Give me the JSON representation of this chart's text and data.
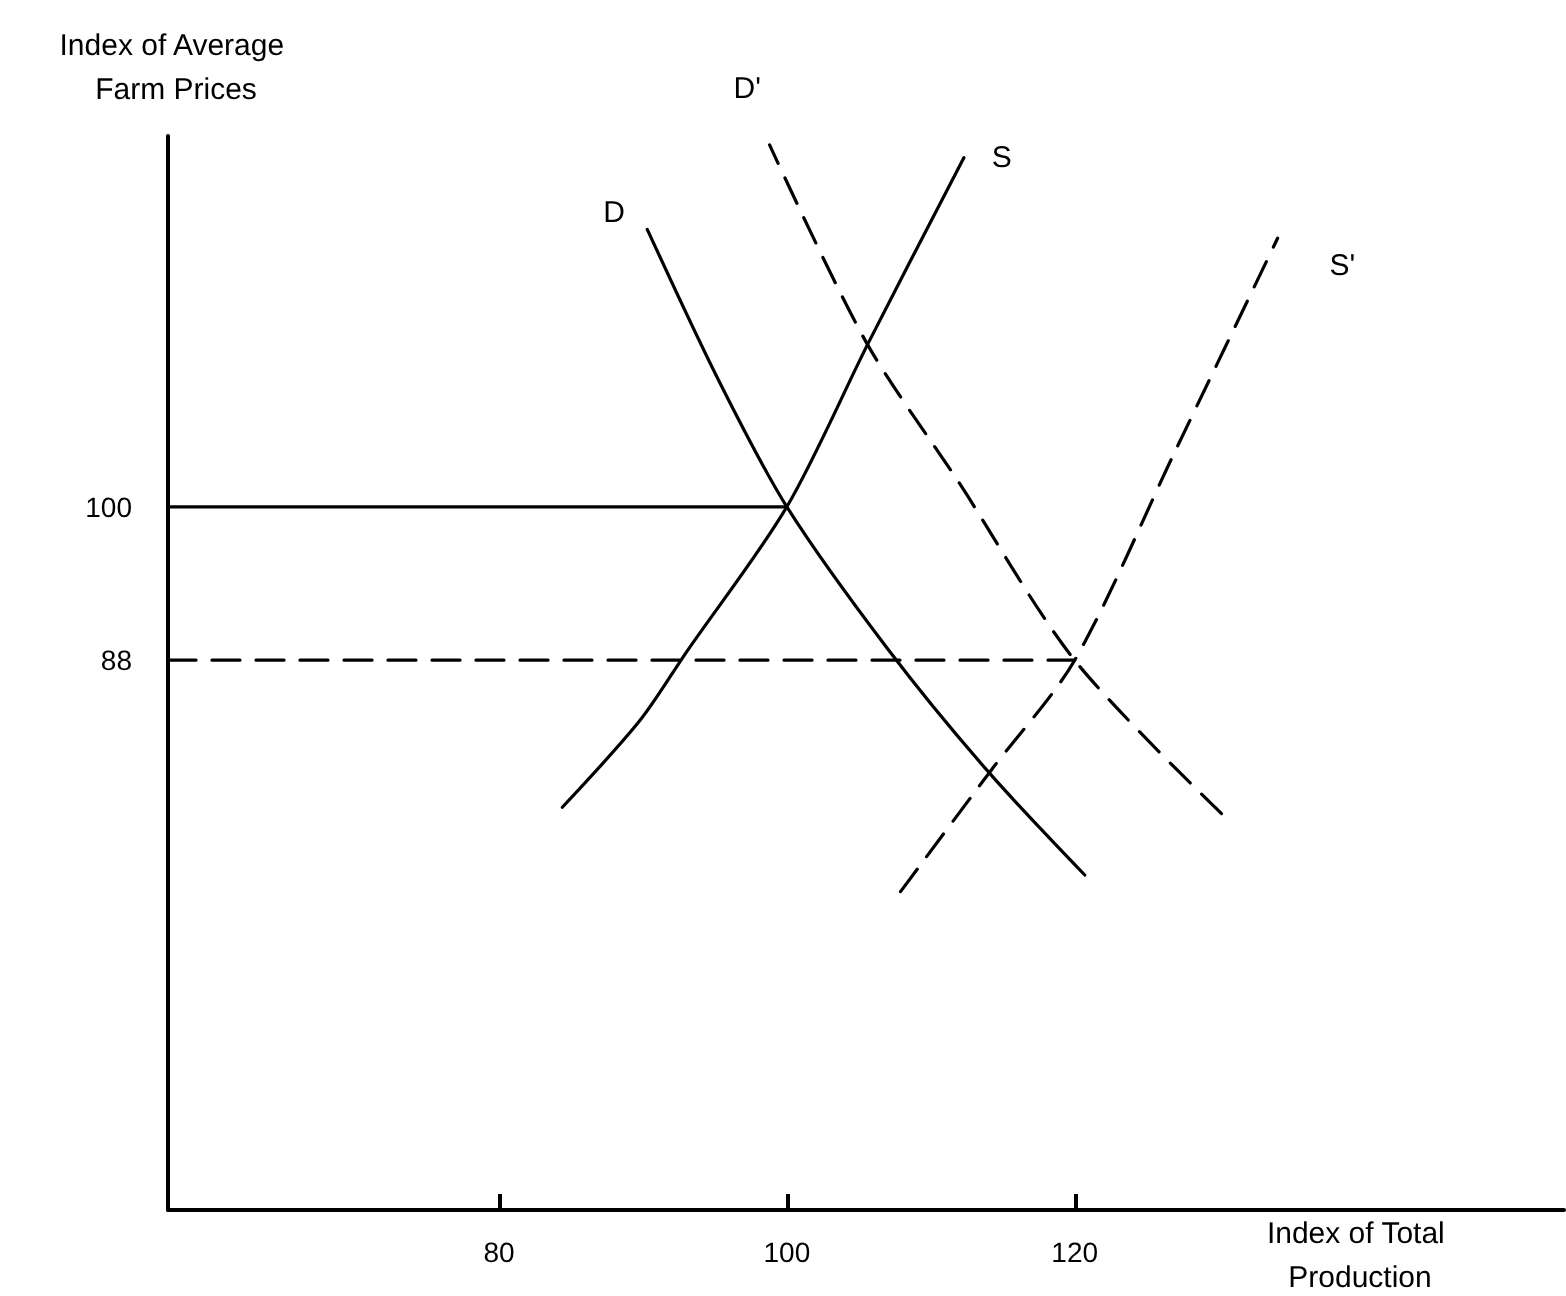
{
  "chart_data": {
    "type": "line",
    "xlabel": "Index of Total Production",
    "ylabel": "Index of Average Farm Prices",
    "xlim": [
      57,
      154
    ],
    "ylim": [
      45,
      129
    ],
    "xticks": [
      80,
      100,
      120
    ],
    "yticks": [
      88,
      100
    ],
    "grid": false,
    "legend": false,
    "marker": "none",
    "series": [
      {
        "name": "S",
        "color": "#000000",
        "line_style": "solid",
        "x": [
          84.4,
          89.8,
          93,
          100,
          105.7,
          112.3
        ],
        "values": [
          76.5,
          83.3,
          88.6,
          100,
          112.9,
          127.3
        ]
      },
      {
        "name": "D",
        "color": "#000000",
        "line_style": "solid",
        "x": [
          120.7,
          113.9,
          107,
          100,
          95.3,
          90.3
        ],
        "values": [
          71.2,
          79.4,
          88.9,
          100,
          109.8,
          121.7
        ]
      },
      {
        "name": "D'",
        "color": "#000000",
        "line_style": "dashed",
        "x": [
          130.2,
          120,
          111.9,
          105.5,
          98.8
        ],
        "values": [
          76,
          88,
          102,
          112.9,
          128.3
        ]
      },
      {
        "name": "S'",
        "color": "#000000",
        "line_style": "dashed",
        "x": [
          107.9,
          114.2,
          120,
          127,
          134.1
        ],
        "values": [
          69.9,
          79.4,
          88,
          104.4,
          121
        ]
      },
      {
        "color": "#000000",
        "line_style": "solid",
        "x": [
          57,
          100
        ],
        "values": [
          100,
          100
        ]
      },
      {
        "color": "#000000",
        "line_style": "dashed",
        "x": [
          57,
          120
        ],
        "values": [
          88,
          88
        ]
      }
    ]
  }
}
